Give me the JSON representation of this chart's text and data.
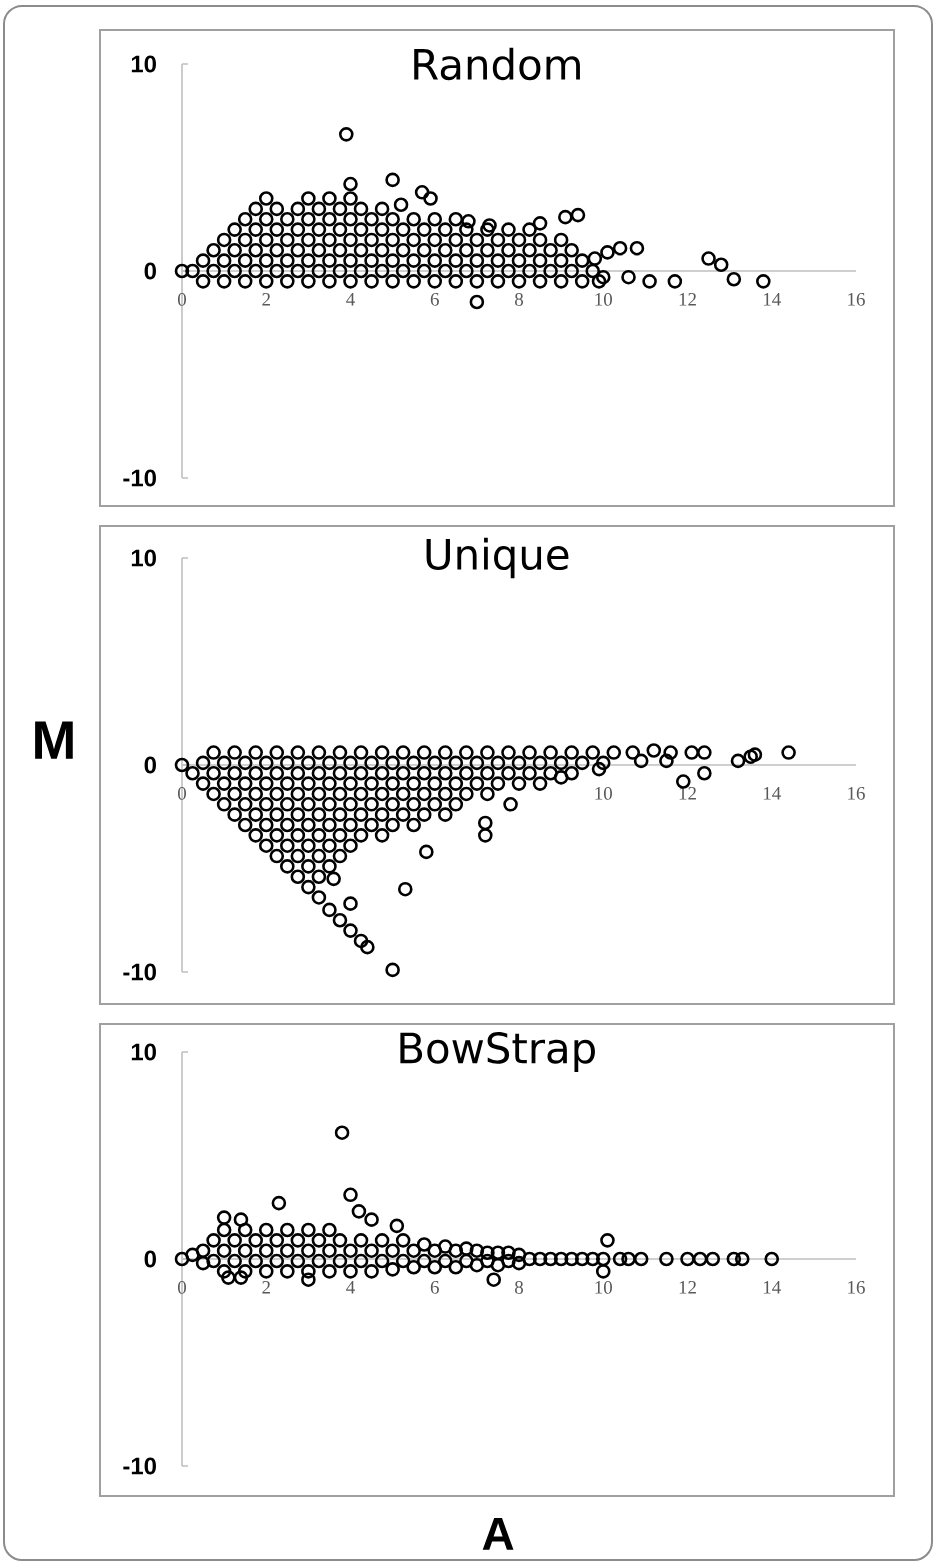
{
  "chart_data": [
    {
      "type": "scatter",
      "title": "Random",
      "color": "#000000",
      "marker": "circle",
      "xlim": [
        0,
        16
      ],
      "ylim": [
        -10,
        10
      ],
      "xticks": [
        0,
        2,
        4,
        6,
        8,
        10,
        12,
        14,
        16
      ],
      "yticks": [
        -10,
        0,
        10
      ],
      "x": [
        0,
        0.25,
        0.5,
        0.5,
        0.75,
        0.75,
        1,
        1,
        1,
        1.25,
        1.25,
        1.25,
        1.5,
        1.5,
        1.5,
        1.5,
        1.75,
        1.75,
        1.75,
        1.75,
        2,
        2,
        2,
        2,
        2.25,
        2.25,
        2.25,
        2.25,
        2.5,
        2.5,
        2.5,
        2.5,
        2.75,
        2.75,
        2.75,
        2.75,
        3,
        3,
        3,
        3,
        3,
        3.25,
        3.25,
        3.25,
        3.25,
        3.5,
        3.5,
        3.5,
        3.5,
        3.5,
        3.75,
        3.75,
        3.75,
        3.75,
        4,
        4,
        4,
        4,
        4,
        4.25,
        4.25,
        4.25,
        4.25,
        4.5,
        4.5,
        4.5,
        4.5,
        4.75,
        4.75,
        4.75,
        4.75,
        5,
        5,
        5,
        5,
        5.25,
        5.25,
        5.25,
        5.5,
        5.5,
        5.5,
        5.5,
        5.75,
        5.75,
        5.75,
        6,
        6,
        6,
        6,
        6.25,
        6.25,
        6.25,
        6.5,
        6.5,
        6.5,
        6.5,
        6.75,
        6.75,
        6.75,
        7,
        7,
        7,
        7.25,
        7.25,
        7.25,
        7.5,
        7.5,
        7.5,
        7.75,
        7.75,
        7.75,
        8,
        8,
        8,
        8.25,
        8.25,
        8.25,
        8.5,
        8.5,
        8.5,
        8.75,
        8.75,
        9,
        9,
        9,
        9.25,
        9.25,
        9.5,
        9.5,
        9.75,
        10,
        3.9,
        4.0,
        5.0,
        5.7,
        5.9,
        5.2,
        2.0,
        9.4,
        9.1,
        8.5,
        6.8,
        7.3,
        9.8,
        10.1,
        10.4,
        10.8,
        10.6,
        11.1,
        11.7,
        12.5,
        12.8,
        13.1,
        13.8,
        7.0,
        9.9
      ],
      "values": [
        0,
        0,
        -0.5,
        0.5,
        0,
        1,
        -0.5,
        0.5,
        1.5,
        0,
        1,
        2,
        -0.5,
        0.5,
        1.5,
        2.5,
        0,
        1,
        2,
        3,
        -0.5,
        0.5,
        1.5,
        2.5,
        0,
        1,
        2,
        3,
        -0.5,
        0.5,
        1.5,
        2.5,
        0,
        1,
        2,
        3,
        -0.5,
        0.5,
        1.5,
        2.5,
        3.5,
        0,
        1,
        2,
        3,
        -0.5,
        0.5,
        1.5,
        2.5,
        3.5,
        0,
        1,
        2,
        3,
        -0.5,
        0.5,
        1.5,
        2.5,
        3.5,
        0,
        1,
        2,
        3,
        -0.5,
        0.5,
        1.5,
        2.5,
        0,
        1,
        2,
        3,
        -0.5,
        0.5,
        1.5,
        2.5,
        0,
        1,
        2,
        -0.5,
        0.5,
        1.5,
        2.5,
        0,
        1,
        2,
        -0.5,
        0.5,
        1.5,
        2.5,
        0,
        1,
        2,
        -0.5,
        0.5,
        1.5,
        2.5,
        0,
        1,
        2,
        -0.5,
        0.5,
        1.5,
        0,
        1,
        2,
        -0.5,
        0.5,
        1.5,
        0,
        1,
        2,
        -0.5,
        0.5,
        1.5,
        0,
        1,
        2,
        -0.5,
        0.5,
        1.5,
        0,
        1,
        -0.5,
        0.5,
        1.5,
        0,
        1,
        -0.5,
        0.5,
        0,
        -0.3,
        6.6,
        4.2,
        4.4,
        3.8,
        3.5,
        3.2,
        3.5,
        2.7,
        2.6,
        2.3,
        2.4,
        2.2,
        0.6,
        0.9,
        1.1,
        1.1,
        -0.3,
        -0.5,
        -0.5,
        0.6,
        0.3,
        -0.4,
        -0.5,
        -1.5,
        -0.5
      ]
    },
    {
      "type": "scatter",
      "title": "Unique",
      "ylabel": "M",
      "color": "#000000",
      "marker": "circle",
      "xlim": [
        0,
        16
      ],
      "ylim": [
        -10,
        10
      ],
      "xticks": [
        0,
        10,
        12,
        14,
        16
      ],
      "yticks": [
        -10,
        0,
        10
      ],
      "x": [
        0,
        0.25,
        0.5,
        0.5,
        0.75,
        0.75,
        0.75,
        1,
        1,
        1,
        1.25,
        1.25,
        1.25,
        1.25,
        1.5,
        1.5,
        1.5,
        1.5,
        1.75,
        1.75,
        1.75,
        1.75,
        1.75,
        2,
        2,
        2,
        2,
        2,
        2.25,
        2.25,
        2.25,
        2.25,
        2.25,
        2.25,
        2.5,
        2.5,
        2.5,
        2.5,
        2.5,
        2.5,
        2.75,
        2.75,
        2.75,
        2.75,
        2.75,
        2.75,
        2.75,
        3,
        3,
        3,
        3,
        3,
        3,
        3,
        3.25,
        3.25,
        3.25,
        3.25,
        3.25,
        3.25,
        3.25,
        3.25,
        3.5,
        3.5,
        3.5,
        3.5,
        3.5,
        3.5,
        3.5,
        3.75,
        3.75,
        3.75,
        3.75,
        3.75,
        3.75,
        3.75,
        4,
        4,
        4,
        4,
        4,
        4,
        4.25,
        4.25,
        4.25,
        4.25,
        4.25,
        4.25,
        4.5,
        4.5,
        4.5,
        4.5,
        4.75,
        4.75,
        4.75,
        4.75,
        4.75,
        5,
        5,
        5,
        5,
        5.25,
        5.25,
        5.25,
        5.25,
        5.5,
        5.5,
        5.5,
        5.5,
        5.75,
        5.75,
        5.75,
        5.75,
        6,
        6,
        6,
        6.25,
        6.25,
        6.25,
        6.25,
        6.5,
        6.5,
        6.5,
        6.75,
        6.75,
        6.75,
        7,
        7,
        7.25,
        7.25,
        7.25,
        7.5,
        7.5,
        7.75,
        7.75,
        8,
        8,
        8.25,
        8.25,
        8.5,
        8.5,
        8.75,
        8.75,
        9,
        9.25,
        9.25,
        9.5,
        9.75,
        10,
        10.25,
        4.4,
        5.0,
        4.0,
        5.3,
        3.6,
        5.8,
        7.2,
        7.2,
        7.8,
        9.0,
        9.9,
        10.7,
        10.9,
        11.2,
        11.6,
        11.5,
        11.9,
        12.1,
        12.4,
        12.4,
        13.2,
        13.5,
        13.6,
        14.4
      ],
      "values": [
        0,
        -0.4,
        0.1,
        -0.9,
        0.6,
        -0.4,
        -1.4,
        0.1,
        -0.9,
        -1.9,
        0.6,
        -0.4,
        -1.4,
        -2.4,
        0.1,
        -0.9,
        -1.9,
        -2.9,
        0.6,
        -0.4,
        -1.4,
        -2.4,
        -3.4,
        0.1,
        -0.9,
        -1.9,
        -2.9,
        -3.9,
        0.6,
        -0.4,
        -1.4,
        -2.4,
        -3.4,
        -4.4,
        0.1,
        -0.9,
        -1.9,
        -2.9,
        -3.9,
        -4.9,
        0.6,
        -0.4,
        -1.4,
        -2.4,
        -3.4,
        -4.4,
        -5.4,
        0.1,
        -0.9,
        -1.9,
        -2.9,
        -3.9,
        -4.9,
        -5.9,
        0.6,
        -0.4,
        -1.4,
        -2.4,
        -3.4,
        -4.4,
        -5.4,
        -6.4,
        0.1,
        -0.9,
        -1.9,
        -2.9,
        -3.9,
        -4.9,
        -7,
        0.6,
        -0.4,
        -1.4,
        -2.4,
        -3.4,
        -4.4,
        -7.5,
        0.1,
        -0.9,
        -1.9,
        -2.9,
        -3.9,
        -8,
        0.6,
        -0.4,
        -1.4,
        -2.4,
        -3.4,
        -8.5,
        0.1,
        -0.9,
        -1.9,
        -2.9,
        0.6,
        -0.4,
        -1.4,
        -2.4,
        -3.4,
        0.1,
        -0.9,
        -1.9,
        -2.9,
        0.6,
        -0.4,
        -1.4,
        -2.4,
        0.1,
        -0.9,
        -1.9,
        -2.9,
        0.6,
        -0.4,
        -1.4,
        -2.4,
        0.1,
        -0.9,
        -1.9,
        0.6,
        -0.4,
        -1.4,
        -2.4,
        0.1,
        -0.9,
        -1.9,
        0.6,
        -0.4,
        -1.4,
        0.1,
        -0.9,
        0.6,
        -0.4,
        -1.4,
        0.1,
        -0.9,
        0.6,
        -0.4,
        0.1,
        -0.9,
        0.6,
        -0.4,
        0.1,
        -0.9,
        0.6,
        -0.4,
        0.1,
        0.6,
        -0.4,
        0.1,
        0.6,
        0.1,
        0.6,
        -8.8,
        -9.9,
        -6.7,
        -6.0,
        -5.5,
        -4.2,
        -3.4,
        -2.8,
        -1.9,
        -0.6,
        -0.2,
        0.6,
        0.2,
        0.7,
        0.6,
        0.2,
        -0.8,
        0.6,
        0.6,
        -0.4,
        0.2,
        0.4,
        0.5,
        0.6
      ]
    },
    {
      "type": "scatter",
      "title": "BowStrap",
      "xlabel": "A",
      "color": "#000000",
      "marker": "circle",
      "xlim": [
        0,
        16
      ],
      "ylim": [
        -10,
        10
      ],
      "xticks": [
        0,
        2,
        4,
        6,
        8,
        10,
        12,
        14,
        16
      ],
      "yticks": [
        -10,
        0,
        10
      ],
      "x": [
        0,
        0.25,
        0.5,
        0.5,
        0.75,
        0.75,
        1,
        1,
        1,
        1.25,
        1.25,
        1.5,
        1.5,
        1.5,
        1.75,
        1.75,
        2,
        2,
        2,
        2.25,
        2.25,
        2.5,
        2.5,
        2.5,
        2.75,
        2.75,
        3,
        3,
        3,
        3.25,
        3.25,
        3.5,
        3.5,
        3.5,
        3.75,
        3.75,
        4,
        4,
        4.25,
        4.25,
        4.5,
        4.5,
        4.75,
        4.75,
        5,
        5,
        5.25,
        5.25,
        5.5,
        5.5,
        5.75,
        5.75,
        6,
        6,
        6.25,
        6.25,
        6.5,
        6.5,
        6.75,
        6.75,
        7,
        7,
        7.25,
        7.25,
        7.5,
        7.5,
        7.75,
        7.75,
        8,
        8,
        8.25,
        8.5,
        8.75,
        9,
        9.25,
        9.5,
        9.75,
        10,
        3.8,
        4.0,
        4.2,
        2.3,
        4.5,
        5.1,
        1.0,
        1.4,
        10.1,
        7.4,
        10.0,
        1.1,
        1.4,
        3.0,
        10.4,
        10.6,
        10.9,
        11.5,
        12.0,
        12.3,
        12.6,
        13.1,
        13.3,
        14.0
      ],
      "values": [
        0,
        0.2,
        -0.2,
        0.4,
        -0.1,
        0.9,
        -0.6,
        0.4,
        1.4,
        -0.1,
        0.9,
        -0.6,
        0.4,
        1.4,
        -0.1,
        0.9,
        -0.6,
        0.4,
        1.4,
        -0.1,
        0.9,
        -0.6,
        0.4,
        1.4,
        -0.1,
        0.9,
        -0.6,
        0.4,
        1.4,
        -0.1,
        0.9,
        -0.6,
        0.4,
        1.4,
        -0.1,
        0.9,
        -0.6,
        0.4,
        -0.1,
        0.9,
        -0.6,
        0.4,
        -0.1,
        0.9,
        -0.5,
        0.4,
        -0.1,
        0.9,
        -0.4,
        0.4,
        -0.1,
        0.7,
        -0.4,
        0.4,
        -0.1,
        0.6,
        -0.4,
        0.4,
        -0.1,
        0.5,
        -0.3,
        0.4,
        -0.1,
        0.3,
        -0.3,
        0.3,
        -0.1,
        0.3,
        -0.2,
        0.2,
        0,
        0,
        0,
        0,
        0,
        0,
        0,
        0,
        6.1,
        3.1,
        2.3,
        2.7,
        1.9,
        1.6,
        2.0,
        1.9,
        0.9,
        -1.0,
        -0.6,
        -0.9,
        -0.9,
        -1.0,
        0,
        0,
        0,
        0,
        0,
        0,
        0,
        0,
        0,
        0
      ]
    }
  ]
}
